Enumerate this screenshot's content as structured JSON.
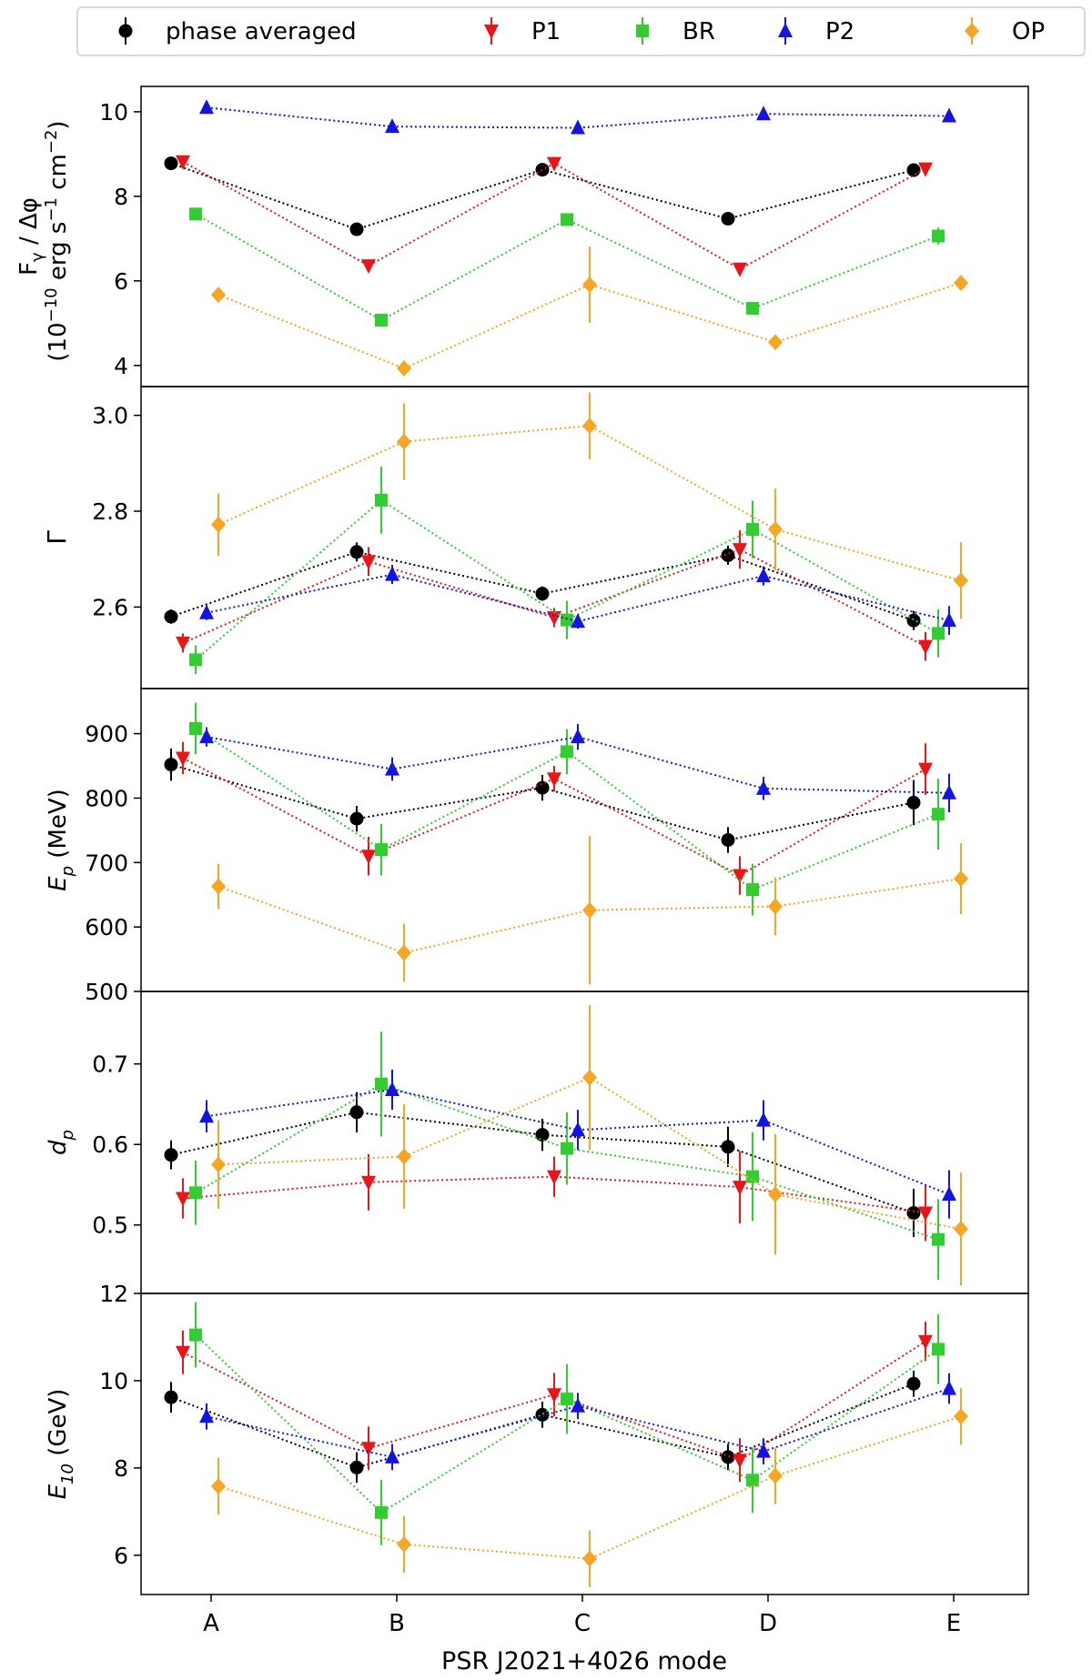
{
  "figure": {
    "xlabel": "PSR J2021+4026 mode"
  },
  "colors": {
    "phase_averaged": "#000000",
    "P1": "#e8151b",
    "BR": "#33cc33",
    "P2": "#1414e0",
    "OP": "#f5a623"
  },
  "chart_data": [
    {
      "type": "scatter",
      "panel": "flux",
      "categories": [
        "A",
        "B",
        "C",
        "D",
        "E"
      ],
      "ylabel_lines": [
        "F_γ / Δφ",
        "10^-10 erg s^-1 cm^-2"
      ],
      "ylim": [
        3.5,
        10.6
      ],
      "yticks": [
        4,
        6,
        8,
        10
      ],
      "legend": {
        "placement": "top",
        "entries": [
          "phase averaged",
          "P1",
          "BR",
          "P2",
          "OP"
        ]
      },
      "series": [
        {
          "name": "phase averaged",
          "key": "phase_averaged",
          "marker": "circle",
          "values": [
            8.78,
            7.22,
            8.63,
            7.47,
            8.62
          ],
          "err": [
            0.06,
            0.06,
            0.06,
            0.06,
            0.06
          ]
        },
        {
          "name": "P1",
          "key": "P1",
          "marker": "triangle-down",
          "values": [
            8.82,
            6.36,
            8.78,
            6.28,
            8.65
          ],
          "err": [
            0.08,
            0.08,
            0.08,
            0.08,
            0.08
          ]
        },
        {
          "name": "BR",
          "key": "BR",
          "marker": "square",
          "values": [
            7.58,
            5.07,
            7.45,
            5.35,
            7.06
          ],
          "err": [
            0.12,
            0.12,
            0.15,
            0.12,
            0.2
          ]
        },
        {
          "name": "P2",
          "key": "P2",
          "marker": "triangle-up",
          "values": [
            10.1,
            9.65,
            9.62,
            9.95,
            9.9
          ],
          "err": [
            0.05,
            0.05,
            0.05,
            0.05,
            0.08
          ]
        },
        {
          "name": "OP",
          "key": "OP",
          "marker": "diamond",
          "values": [
            5.67,
            3.93,
            5.91,
            4.55,
            5.95
          ],
          "err": [
            0.08,
            0.08,
            0.9,
            0.08,
            0.15
          ]
        }
      ]
    },
    {
      "type": "scatter",
      "panel": "gamma",
      "categories": [
        "A",
        "B",
        "C",
        "D",
        "E"
      ],
      "ylabel": "Γ",
      "ylim": [
        2.43,
        3.06
      ],
      "yticks": [
        2.6,
        2.8,
        3.0
      ],
      "ytick_labels": [
        "2.6",
        "2.8",
        "3.0"
      ],
      "series": [
        {
          "name": "phase averaged",
          "key": "phase_averaged",
          "marker": "circle",
          "values": [
            2.58,
            2.715,
            2.628,
            2.708,
            2.572
          ],
          "err": [
            0.015,
            0.02,
            0.015,
            0.02,
            0.02
          ]
        },
        {
          "name": "P1",
          "key": "P1",
          "marker": "triangle-down",
          "values": [
            2.525,
            2.695,
            2.578,
            2.72,
            2.518
          ],
          "err": [
            0.02,
            0.03,
            0.02,
            0.04,
            0.03
          ]
        },
        {
          "name": "BR",
          "key": "BR",
          "marker": "square",
          "values": [
            2.49,
            2.823,
            2.573,
            2.762,
            2.545
          ],
          "err": [
            0.03,
            0.07,
            0.04,
            0.06,
            0.05
          ]
        },
        {
          "name": "P2",
          "key": "P2",
          "marker": "triangle-up",
          "values": [
            2.588,
            2.668,
            2.57,
            2.665,
            2.572
          ],
          "err": [
            0.015,
            0.02,
            0.015,
            0.02,
            0.03
          ]
        },
        {
          "name": "OP",
          "key": "OP",
          "marker": "diamond",
          "values": [
            2.772,
            2.945,
            2.978,
            2.762,
            2.655
          ],
          "err": [
            0.065,
            0.08,
            0.07,
            0.085,
            0.08
          ]
        }
      ]
    },
    {
      "type": "scatter",
      "panel": "ep",
      "categories": [
        "A",
        "B",
        "C",
        "D",
        "E"
      ],
      "ylabel_base": "E",
      "ylabel_sub": "p",
      "ylabel_unit": " (MeV)",
      "ylim": [
        500,
        970
      ],
      "yticks": [
        500,
        600,
        700,
        800,
        900
      ],
      "series": [
        {
          "name": "phase averaged",
          "key": "phase_averaged",
          "marker": "circle",
          "values": [
            852,
            768,
            816,
            735,
            793
          ],
          "err": [
            25,
            20,
            20,
            20,
            35
          ]
        },
        {
          "name": "P1",
          "key": "P1",
          "marker": "triangle-down",
          "values": [
            862,
            710,
            830,
            680,
            845
          ],
          "err": [
            25,
            30,
            20,
            30,
            40
          ]
        },
        {
          "name": "BR",
          "key": "BR",
          "marker": "square",
          "values": [
            908,
            720,
            872,
            658,
            775
          ],
          "err": [
            40,
            40,
            35,
            40,
            55
          ]
        },
        {
          "name": "P2",
          "key": "P2",
          "marker": "triangle-up",
          "values": [
            895,
            845,
            895,
            815,
            808
          ],
          "err": [
            15,
            18,
            20,
            18,
            30
          ]
        },
        {
          "name": "OP",
          "key": "OP",
          "marker": "diamond",
          "values": [
            663,
            560,
            626,
            632,
            675
          ],
          "err": [
            35,
            45,
            115,
            45,
            55
          ]
        }
      ]
    },
    {
      "type": "scatter",
      "panel": "dp",
      "categories": [
        "A",
        "B",
        "C",
        "D",
        "E"
      ],
      "ylabel_base": "d",
      "ylabel_sub": "p",
      "ylim": [
        0.415,
        0.79
      ],
      "yticks": [
        0.5,
        0.6,
        0.7
      ],
      "ytick_labels": [
        "0.5",
        "0.6",
        "0.7"
      ],
      "series": [
        {
          "name": "phase averaged",
          "key": "phase_averaged",
          "marker": "circle",
          "values": [
            0.587,
            0.64,
            0.612,
            0.597,
            0.515
          ],
          "err": [
            0.018,
            0.025,
            0.02,
            0.025,
            0.03
          ]
        },
        {
          "name": "P1",
          "key": "P1",
          "marker": "triangle-down",
          "values": [
            0.533,
            0.553,
            0.56,
            0.547,
            0.515
          ],
          "err": [
            0.025,
            0.035,
            0.025,
            0.045,
            0.035
          ]
        },
        {
          "name": "BR",
          "key": "BR",
          "marker": "square",
          "values": [
            0.54,
            0.675,
            0.595,
            0.56,
            0.482
          ],
          "err": [
            0.04,
            0.065,
            0.045,
            0.055,
            0.05
          ]
        },
        {
          "name": "P2",
          "key": "P2",
          "marker": "triangle-up",
          "values": [
            0.635,
            0.668,
            0.618,
            0.63,
            0.538
          ],
          "err": [
            0.02,
            0.025,
            0.025,
            0.025,
            0.03
          ]
        },
        {
          "name": "OP",
          "key": "OP",
          "marker": "diamond",
          "values": [
            0.575,
            0.585,
            0.683,
            0.538,
            0.495
          ],
          "err": [
            0.055,
            0.065,
            0.09,
            0.075,
            0.07
          ]
        }
      ]
    },
    {
      "type": "scatter",
      "panel": "e10",
      "categories": [
        "A",
        "B",
        "C",
        "D",
        "E"
      ],
      "ylabel_base": "E",
      "ylabel_sub": "10",
      "ylabel_unit": " (GeV)",
      "ylim": [
        5.1,
        12.0
      ],
      "yticks": [
        6,
        8,
        10,
        12
      ],
      "series": [
        {
          "name": "phase averaged",
          "key": "phase_averaged",
          "marker": "circle",
          "values": [
            9.62,
            8.01,
            9.22,
            8.25,
            9.93
          ],
          "err": [
            0.35,
            0.35,
            0.3,
            0.3,
            0.3
          ]
        },
        {
          "name": "P1",
          "key": "P1",
          "marker": "triangle-down",
          "values": [
            10.65,
            8.45,
            9.68,
            8.18,
            10.9
          ],
          "err": [
            0.5,
            0.5,
            0.5,
            0.5,
            0.45
          ]
        },
        {
          "name": "BR",
          "key": "BR",
          "marker": "square",
          "values": [
            11.05,
            6.98,
            9.58,
            7.72,
            10.72
          ],
          "err": [
            0.75,
            0.75,
            0.8,
            0.75,
            0.8
          ]
        },
        {
          "name": "P2",
          "key": "P2",
          "marker": "triangle-up",
          "values": [
            9.18,
            8.25,
            9.42,
            8.38,
            9.82
          ],
          "err": [
            0.3,
            0.3,
            0.3,
            0.3,
            0.35
          ]
        },
        {
          "name": "OP",
          "key": "OP",
          "marker": "diamond",
          "values": [
            7.58,
            6.25,
            5.92,
            7.82,
            9.18
          ],
          "err": [
            0.65,
            0.65,
            0.65,
            0.65,
            0.65
          ]
        }
      ]
    }
  ]
}
